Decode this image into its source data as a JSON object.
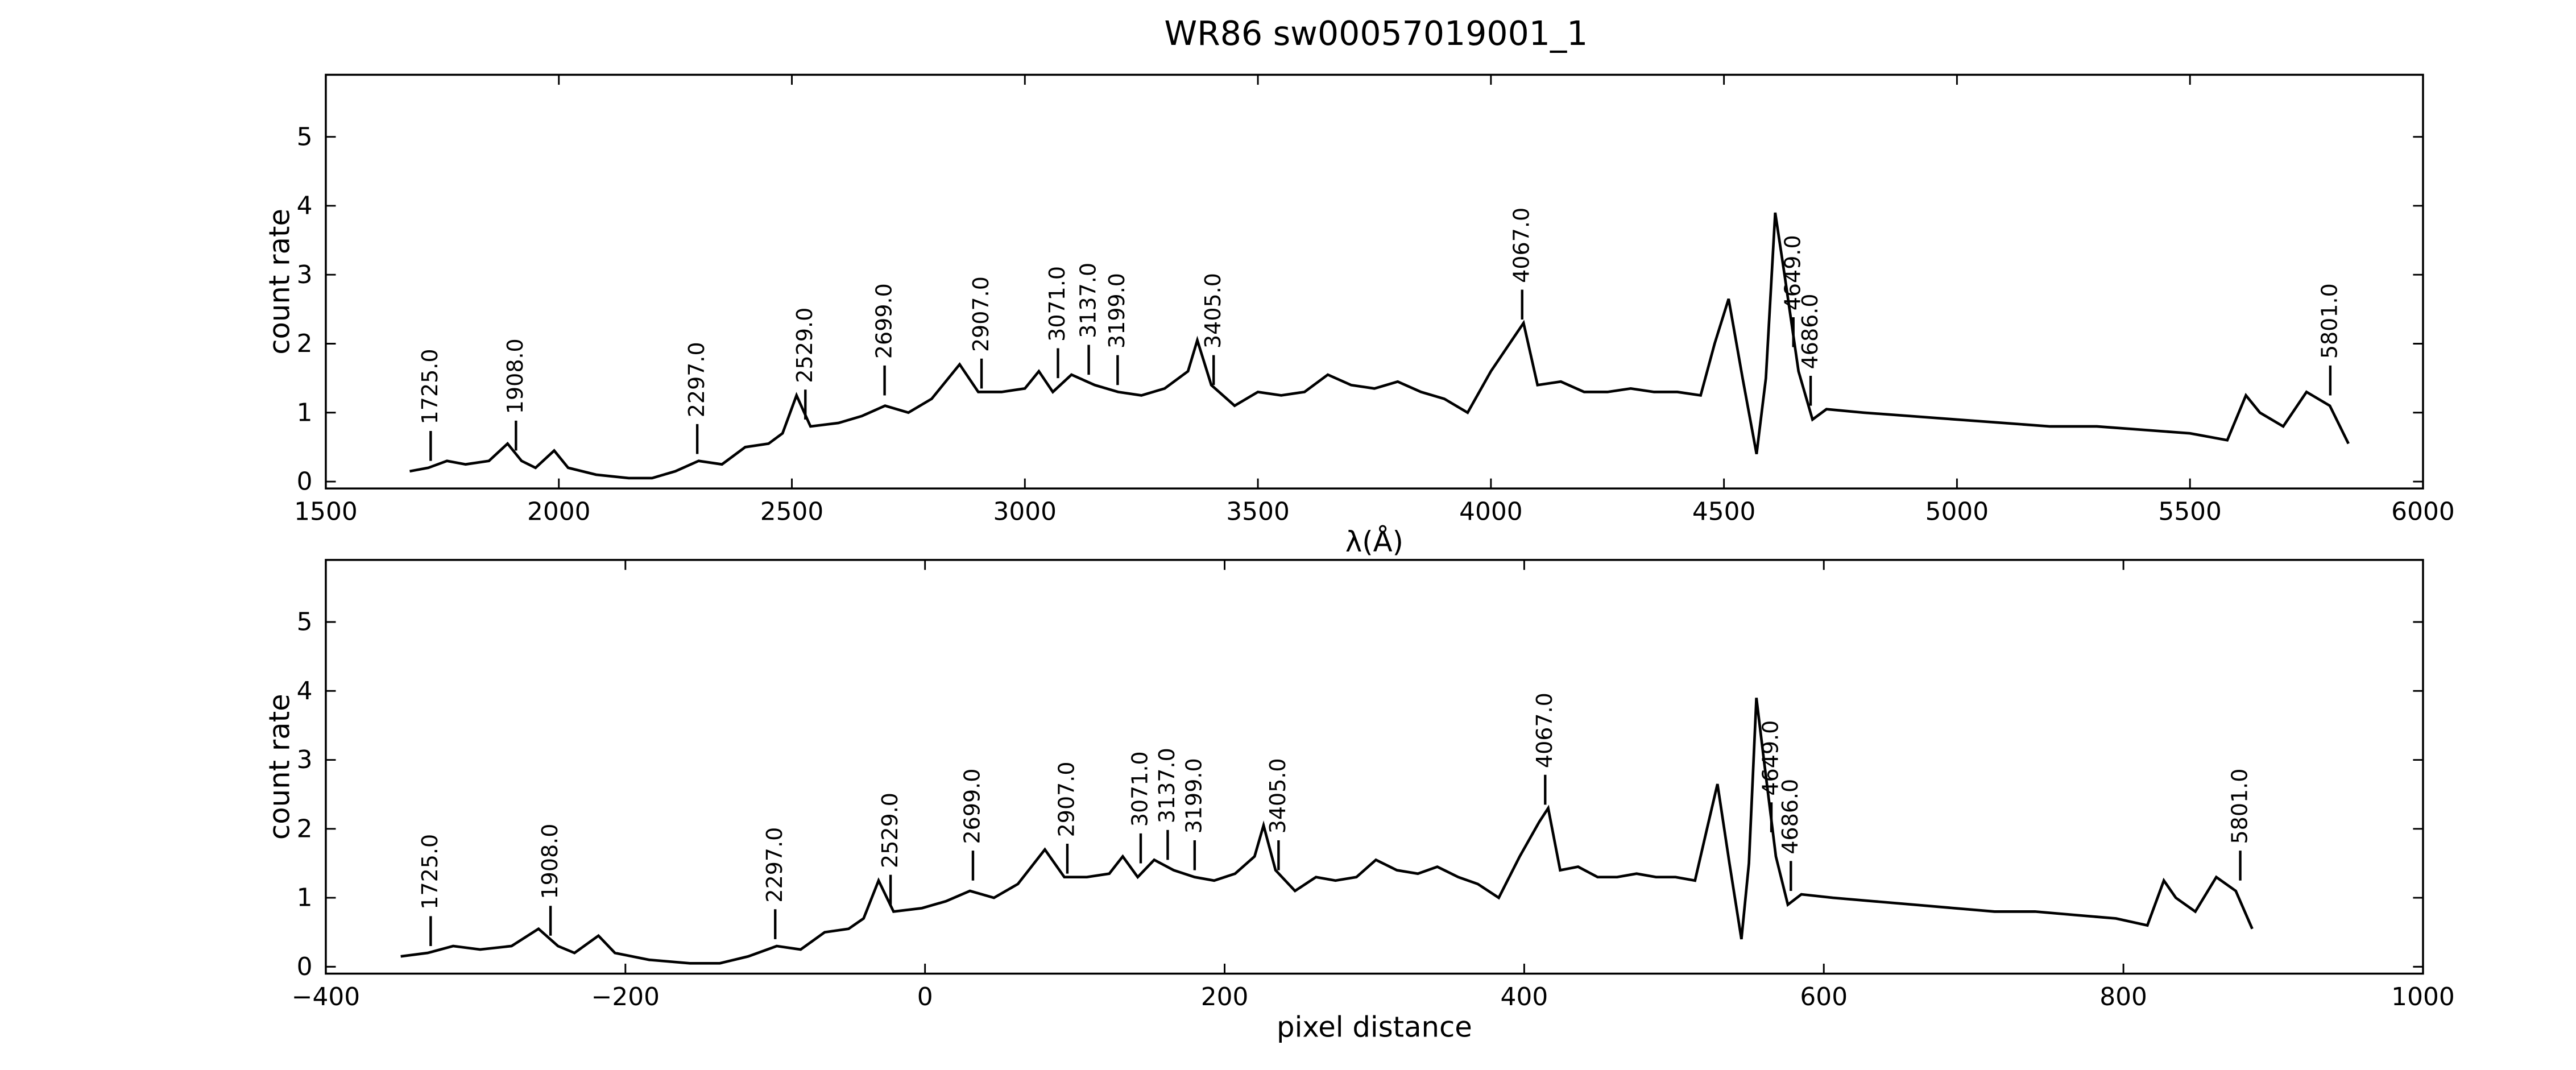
{
  "title": "WR86  sw00057019001_1",
  "chart_data": [
    {
      "type": "line",
      "xlabel": "λ(Å)",
      "ylabel": "count rate",
      "color": "#000000",
      "xlim": [
        1500,
        6000
      ],
      "ylim": [
        -0.1,
        5.9
      ],
      "xticks": [
        1500,
        2000,
        2500,
        3000,
        3500,
        4000,
        4500,
        5000,
        5500,
        6000
      ],
      "yticks": [
        0,
        1,
        2,
        3,
        4,
        5
      ],
      "x": [
        1680,
        1720,
        1760,
        1800,
        1850,
        1890,
        1920,
        1950,
        1990,
        2020,
        2080,
        2150,
        2200,
        2250,
        2300,
        2350,
        2400,
        2450,
        2480,
        2510,
        2540,
        2600,
        2650,
        2700,
        2750,
        2800,
        2860,
        2900,
        2950,
        3000,
        3030,
        3060,
        3100,
        3150,
        3200,
        3250,
        3300,
        3350,
        3370,
        3400,
        3450,
        3500,
        3550,
        3600,
        3650,
        3700,
        3750,
        3800,
        3850,
        3900,
        3950,
        4000,
        4050,
        4070,
        4100,
        4150,
        4200,
        4250,
        4300,
        4350,
        4400,
        4450,
        4480,
        4510,
        4540,
        4570,
        4590,
        4610,
        4630,
        4660,
        4690,
        4720,
        4800,
        4900,
        5000,
        5100,
        5200,
        5300,
        5400,
        5500,
        5580,
        5620,
        5650,
        5700,
        5750,
        5800,
        5840
      ],
      "values": [
        0.15,
        0.2,
        0.3,
        0.25,
        0.3,
        0.55,
        0.3,
        0.2,
        0.45,
        0.2,
        0.1,
        0.05,
        0.05,
        0.15,
        0.3,
        0.25,
        0.5,
        0.55,
        0.7,
        1.25,
        0.8,
        0.85,
        0.95,
        1.1,
        1.0,
        1.2,
        1.7,
        1.3,
        1.3,
        1.35,
        1.6,
        1.3,
        1.55,
        1.4,
        1.3,
        1.25,
        1.35,
        1.6,
        2.05,
        1.4,
        1.1,
        1.3,
        1.25,
        1.3,
        1.55,
        1.4,
        1.35,
        1.45,
        1.3,
        1.2,
        1.0,
        1.6,
        2.1,
        2.3,
        1.4,
        1.45,
        1.3,
        1.3,
        1.35,
        1.3,
        1.3,
        1.25,
        2.0,
        2.65,
        1.5,
        0.4,
        1.5,
        3.9,
        3.0,
        1.6,
        0.9,
        1.05,
        1.0,
        0.95,
        0.9,
        0.85,
        0.8,
        0.8,
        0.75,
        0.7,
        0.6,
        1.25,
        1.0,
        0.8,
        1.3,
        1.1,
        0.55
      ],
      "annotations": [
        {
          "text": "1725.0",
          "x": 1725,
          "y": 0.3
        },
        {
          "text": "1908.0",
          "x": 1908,
          "y": 0.45
        },
        {
          "text": "2297.0",
          "x": 2297,
          "y": 0.4
        },
        {
          "text": "2529.0",
          "x": 2529,
          "y": 0.9
        },
        {
          "text": "2699.0",
          "x": 2699,
          "y": 1.25
        },
        {
          "text": "2907.0",
          "x": 2907,
          "y": 1.35
        },
        {
          "text": "3071.0",
          "x": 3071,
          "y": 1.5
        },
        {
          "text": "3137.0",
          "x": 3137,
          "y": 1.55
        },
        {
          "text": "3199.0",
          "x": 3199,
          "y": 1.4
        },
        {
          "text": "3405.0",
          "x": 3405,
          "y": 1.4
        },
        {
          "text": "4067.0",
          "x": 4067,
          "y": 2.35
        },
        {
          "text": "4649.0",
          "x": 4649,
          "y": 1.95
        },
        {
          "text": "4686.0",
          "x": 4686,
          "y": 1.1
        },
        {
          "text": "5801.0",
          "x": 5801,
          "y": 1.25
        }
      ]
    },
    {
      "type": "line",
      "xlabel": "pixel distance",
      "ylabel": "count rate",
      "color": "#000000",
      "xlim": [
        -400,
        1000
      ],
      "ylim": [
        -0.1,
        5.9
      ],
      "xticks": [
        {
          "value": -400,
          "label": "−400"
        },
        {
          "value": -200,
          "label": "−200"
        },
        0,
        200,
        400,
        600,
        800,
        1000
      ],
      "yticks": [
        0,
        1,
        2,
        3,
        4,
        5
      ],
      "x": [
        -350,
        -332,
        -315,
        -297,
        -276,
        -258,
        -245,
        -234,
        -218,
        -207,
        -184,
        -157,
        -137,
        -118,
        -99,
        -83,
        -67,
        -51,
        -41,
        -31,
        -21,
        -2,
        14,
        30,
        46,
        62,
        80,
        93,
        108,
        123,
        132,
        142,
        153,
        166,
        180,
        193,
        207,
        220,
        226,
        234,
        247,
        261,
        274,
        288,
        301,
        315,
        329,
        342,
        356,
        369,
        383,
        397,
        410,
        416,
        424,
        436,
        449,
        462,
        475,
        488,
        501,
        514,
        522,
        529,
        537,
        545,
        550,
        555,
        560,
        568,
        576,
        585,
        606,
        633,
        660,
        687,
        714,
        741,
        768,
        795,
        816,
        827,
        835,
        848,
        862,
        875,
        886
      ],
      "values": [
        0.15,
        0.2,
        0.3,
        0.25,
        0.3,
        0.55,
        0.3,
        0.2,
        0.45,
        0.2,
        0.1,
        0.05,
        0.05,
        0.15,
        0.3,
        0.25,
        0.5,
        0.55,
        0.7,
        1.25,
        0.8,
        0.85,
        0.95,
        1.1,
        1.0,
        1.2,
        1.7,
        1.3,
        1.3,
        1.35,
        1.6,
        1.3,
        1.55,
        1.4,
        1.3,
        1.25,
        1.35,
        1.6,
        2.05,
        1.4,
        1.1,
        1.3,
        1.25,
        1.3,
        1.55,
        1.4,
        1.35,
        1.45,
        1.3,
        1.2,
        1.0,
        1.6,
        2.1,
        2.3,
        1.4,
        1.45,
        1.3,
        1.3,
        1.35,
        1.3,
        1.3,
        1.25,
        2.0,
        2.65,
        1.5,
        0.4,
        1.5,
        3.9,
        3.0,
        1.6,
        0.9,
        1.05,
        1.0,
        0.95,
        0.9,
        0.85,
        0.8,
        0.8,
        0.75,
        0.7,
        0.6,
        1.25,
        1.0,
        0.8,
        1.3,
        1.1,
        0.55
      ],
      "annotations": [
        {
          "text": "1725.0",
          "x": -330,
          "y": 0.3
        },
        {
          "text": "1908.0",
          "x": -250,
          "y": 0.45
        },
        {
          "text": "2297.0",
          "x": -100,
          "y": 0.4
        },
        {
          "text": "2529.0",
          "x": -23,
          "y": 0.9
        },
        {
          "text": "2699.0",
          "x": 32,
          "y": 1.25
        },
        {
          "text": "2907.0",
          "x": 95,
          "y": 1.35
        },
        {
          "text": "3071.0",
          "x": 144,
          "y": 1.5
        },
        {
          "text": "3137.0",
          "x": 162,
          "y": 1.55
        },
        {
          "text": "3199.0",
          "x": 180,
          "y": 1.4
        },
        {
          "text": "3405.0",
          "x": 236,
          "y": 1.4
        },
        {
          "text": "4067.0",
          "x": 414,
          "y": 2.35
        },
        {
          "text": "4649.0",
          "x": 565,
          "y": 1.95
        },
        {
          "text": "4686.0",
          "x": 578,
          "y": 1.1
        },
        {
          "text": "5801.0",
          "x": 878,
          "y": 1.25
        }
      ]
    }
  ]
}
